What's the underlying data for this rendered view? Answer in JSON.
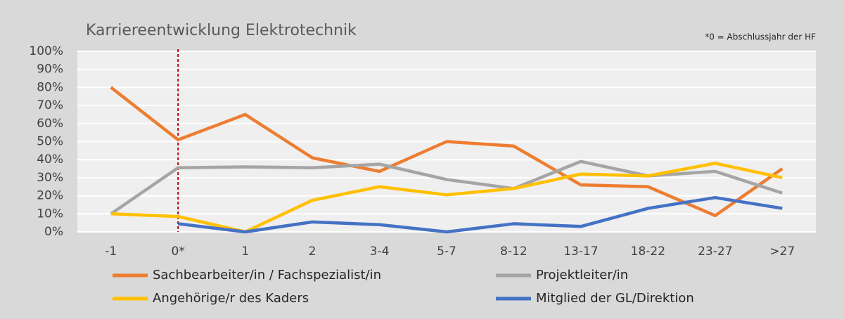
{
  "chart_data": {
    "type": "line",
    "title": "Karriereentwicklung Elektrotechnik",
    "annotation": "*0 = Abschlussjahr der HF",
    "categories": [
      "-1",
      "0*",
      "1",
      "2",
      "3-4",
      "5-7",
      "8-12",
      "13-17",
      "18-22",
      "23-27",
      ">27"
    ],
    "series": [
      {
        "name": "Sachbearbeiter/in / Fachspezialist/in",
        "color": "#ed7d31",
        "values": [
          80,
          51,
          65,
          41,
          33.5,
          50,
          47.5,
          26,
          25,
          9,
          35
        ]
      },
      {
        "name": "Projektleiter/in",
        "color": "#a5a5a5",
        "values": [
          10,
          35.5,
          36,
          35.5,
          37.5,
          29,
          24,
          39,
          31,
          33.5,
          21.5
        ]
      },
      {
        "name": "Angehörige/r des Kaders",
        "color": "#ffc000",
        "values": [
          10,
          8.5,
          0,
          17.5,
          25,
          20.5,
          24,
          32,
          31,
          38,
          30
        ]
      },
      {
        "name": "Mitglied der GL/Direktion",
        "color": "#4472c4",
        "values": [
          null,
          4.5,
          0,
          5.5,
          4,
          0,
          4.5,
          3,
          13,
          19,
          13
        ]
      }
    ],
    "ylim": [
      0,
      100
    ],
    "yticks": [
      {
        "value": 0,
        "label": "0%"
      },
      {
        "value": 10,
        "label": "10%"
      },
      {
        "value": 20,
        "label": "20%"
      },
      {
        "value": 30,
        "label": "30%"
      },
      {
        "value": 40,
        "label": "40%"
      },
      {
        "value": 50,
        "label": "50%"
      },
      {
        "value": 60,
        "label": "60%"
      },
      {
        "value": 70,
        "label": "70%"
      },
      {
        "value": 80,
        "label": "80%"
      },
      {
        "value": 90,
        "label": "90%"
      },
      {
        "value": 100,
        "label": "100%"
      }
    ],
    "grid": true,
    "reference_category": "0*",
    "reference_color": "#c00000"
  }
}
